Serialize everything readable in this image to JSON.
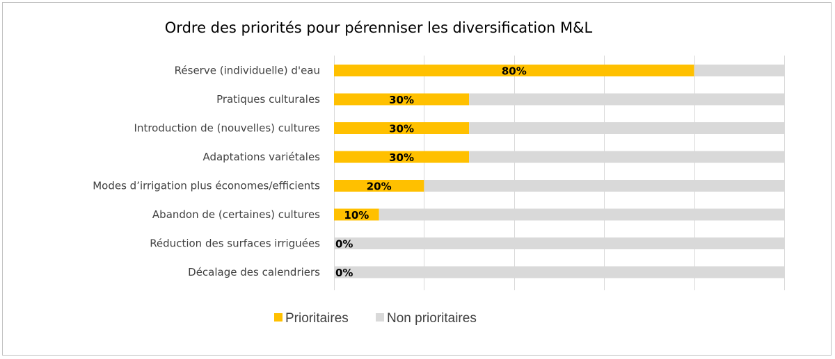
{
  "chart_data": {
    "type": "bar",
    "orientation": "horizontal",
    "stacked": true,
    "title": "Ordre des priorités pour pérenniser les diversification M&L",
    "categories": [
      "Réserve (individuelle) d'eau",
      "Pratiques culturales",
      "Introduction de (nouvelles) cultures",
      "Adaptations variétales",
      "Modes d’irrigation plus économes/efficients",
      "Abandon de (certaines) cultures",
      "Réduction des surfaces irriguées",
      "Décalage des calendriers"
    ],
    "series": [
      {
        "name": "Prioritaires",
        "color": "#ffc000",
        "values": [
          80,
          30,
          30,
          30,
          20,
          10,
          0,
          0
        ],
        "labels": [
          "80%",
          "30%",
          "30%",
          "30%",
          "20%",
          "10%",
          "0%",
          "0%"
        ]
      },
      {
        "name": "Non prioritaires",
        "color": "#d9d9d9",
        "values": [
          20,
          70,
          70,
          70,
          80,
          90,
          100,
          100
        ]
      }
    ],
    "xlim": [
      0,
      100
    ],
    "gridline_color": "#d9d9d9",
    "legend": "bottom",
    "xlabel": "",
    "ylabel": ""
  }
}
